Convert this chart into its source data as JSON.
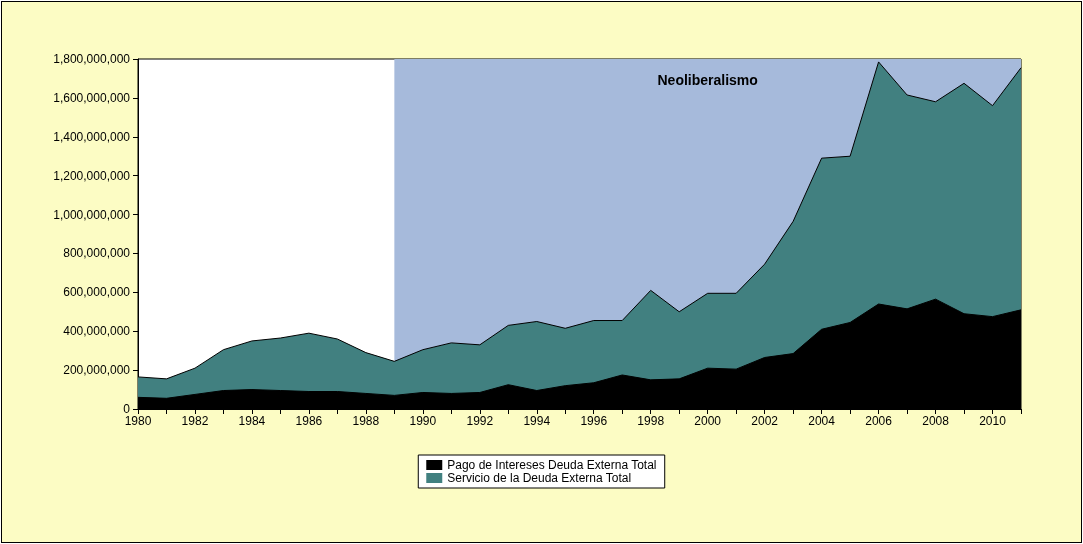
{
  "chart_data": {
    "type": "area",
    "x": [
      1980,
      1981,
      1982,
      1983,
      1984,
      1985,
      1986,
      1987,
      1988,
      1989,
      1990,
      1991,
      1992,
      1993,
      1994,
      1995,
      1996,
      1997,
      1998,
      1999,
      2000,
      2001,
      2002,
      2003,
      2004,
      2005,
      2006,
      2007,
      2008,
      2009,
      2010,
      2011
    ],
    "series": [
      {
        "name": "Pago de Intereses Deuda Externa Total",
        "color": "#000000",
        "values": [
          60000000,
          55000000,
          75000000,
          95000000,
          100000000,
          95000000,
          90000000,
          90000000,
          80000000,
          70000000,
          85000000,
          80000000,
          85000000,
          125000000,
          95000000,
          120000000,
          135000000,
          175000000,
          150000000,
          155000000,
          210000000,
          205000000,
          265000000,
          285000000,
          410000000,
          445000000,
          540000000,
          515000000,
          565000000,
          490000000,
          475000000,
          510000000
        ]
      },
      {
        "name": "Servicio de la Deuda Externa Total",
        "color": "#418080",
        "values": [
          165000000,
          155000000,
          210000000,
          305000000,
          350000000,
          365000000,
          390000000,
          360000000,
          290000000,
          245000000,
          305000000,
          340000000,
          330000000,
          430000000,
          450000000,
          415000000,
          455000000,
          455000000,
          610000000,
          500000000,
          595000000,
          595000000,
          745000000,
          965000000,
          1290000000,
          1300000000,
          1785000000,
          1615000000,
          1580000000,
          1675000000,
          1560000000,
          1755000000
        ]
      }
    ],
    "xlim": [
      1980,
      2011
    ],
    "xticks": [
      1980,
      1982,
      1984,
      1986,
      1988,
      1990,
      1992,
      1994,
      1996,
      1998,
      2000,
      2002,
      2004,
      2006,
      2008,
      2010
    ],
    "ylim": [
      0,
      1800000000
    ],
    "yticks": [
      0,
      {
        "value": 200000000,
        "label": "200,000,000"
      },
      {
        "value": 400000000,
        "label": "400,000,000"
      },
      {
        "value": 600000000,
        "label": "600,000,000"
      },
      {
        "value": 800000000,
        "label": "800,000,000"
      },
      {
        "value": 1000000000,
        "label": "1,000,000,000"
      },
      {
        "value": 1200000000,
        "label": "1,200,000,000"
      },
      {
        "value": 1400000000,
        "label": "1,400,000,000"
      },
      {
        "value": 1600000000,
        "label": "1,600,000,000"
      },
      {
        "value": 1800000000,
        "label": "1,800,000,000"
      }
    ],
    "bands": [
      {
        "axis": "x",
        "from": 1989,
        "to": 2011,
        "label": "Neoliberalismo",
        "color": "#a6badb"
      }
    ],
    "grid": false,
    "legend": "bottom"
  }
}
